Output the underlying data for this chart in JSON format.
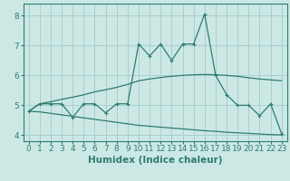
{
  "x": [
    0,
    1,
    2,
    3,
    4,
    5,
    6,
    7,
    8,
    9,
    10,
    11,
    12,
    13,
    14,
    15,
    16,
    17,
    18,
    19,
    20,
    21,
    22,
    23
  ],
  "line_main": [
    4.8,
    5.05,
    5.05,
    5.05,
    4.6,
    5.05,
    5.05,
    4.75,
    5.05,
    5.05,
    7.05,
    6.65,
    7.05,
    6.5,
    7.05,
    7.05,
    8.05,
    6.0,
    5.35,
    5.0,
    5.0,
    4.65,
    5.05,
    4.05
  ],
  "line_upper": [
    4.8,
    5.05,
    5.12,
    5.2,
    5.27,
    5.35,
    5.45,
    5.52,
    5.6,
    5.7,
    5.82,
    5.88,
    5.93,
    5.97,
    6.0,
    6.02,
    6.03,
    6.02,
    6.0,
    5.97,
    5.92,
    5.88,
    5.85,
    5.82
  ],
  "line_lower": [
    4.8,
    4.78,
    4.73,
    4.68,
    4.63,
    4.58,
    4.53,
    4.48,
    4.43,
    4.38,
    4.33,
    4.3,
    4.27,
    4.24,
    4.21,
    4.18,
    4.15,
    4.13,
    4.1,
    4.08,
    4.06,
    4.04,
    4.02,
    4.01
  ],
  "color": "#2d7d6e",
  "bg_color": "#cce8e5",
  "grid_color": "#aacfcc",
  "xlabel": "Humidex (Indice chaleur)",
  "ylim": [
    3.8,
    8.4
  ],
  "xlim": [
    -0.5,
    23.5
  ],
  "yticks": [
    4,
    5,
    6,
    7,
    8
  ],
  "xticks": [
    0,
    1,
    2,
    3,
    4,
    5,
    6,
    7,
    8,
    9,
    10,
    11,
    12,
    13,
    14,
    15,
    16,
    17,
    18,
    19,
    20,
    21,
    22,
    23
  ],
  "xlabel_fontsize": 7.5,
  "tick_fontsize": 6.5,
  "marker_size": 2.5,
  "linewidth": 0.9
}
